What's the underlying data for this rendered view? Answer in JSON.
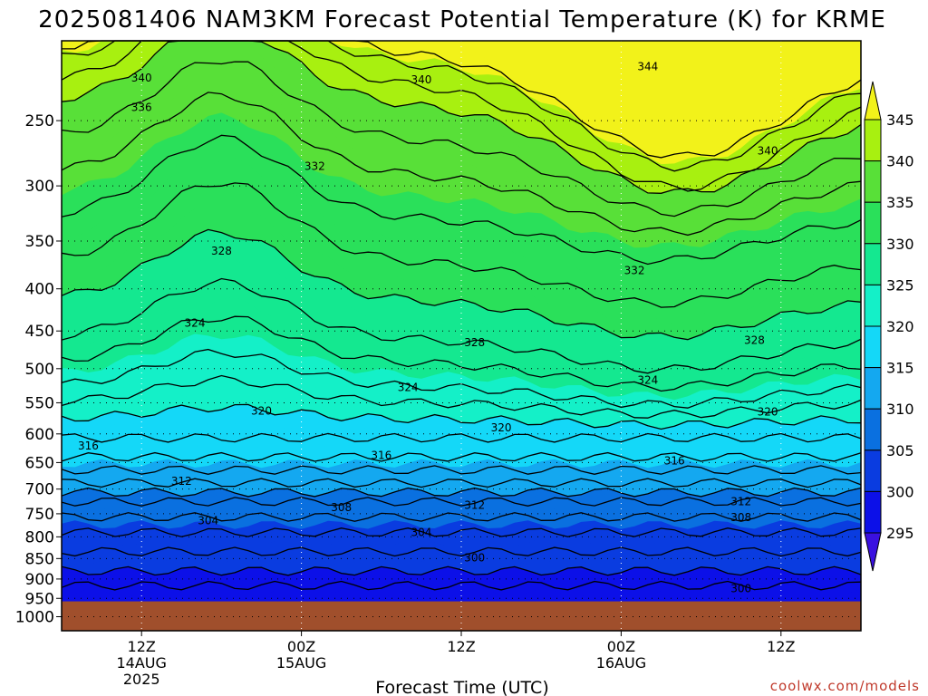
{
  "chart_data": {
    "type": "heatmap",
    "title": "2025081406 NAM3KM Forecast Potential Temperature (K) for KRME",
    "xlabel": "Forecast Time (UTC)",
    "ylabel": "",
    "credit": "coolwx.com/models",
    "y_ticks": [
      "250",
      "300",
      "350",
      "400",
      "450",
      "500",
      "550",
      "600",
      "650",
      "700",
      "750",
      "800",
      "850",
      "900",
      "950",
      "1000"
    ],
    "y_tick_values": [
      250,
      300,
      350,
      400,
      450,
      500,
      550,
      600,
      650,
      700,
      750,
      800,
      850,
      900,
      950,
      1000
    ],
    "y_range_hPa": [
      200,
      1040
    ],
    "y_scale": "log",
    "x_range_hours_from_06Z_14AUG": [
      0,
      60
    ],
    "x_ticks": [
      {
        "label": "12Z",
        "sub1": "14AUG",
        "sub2": "2025",
        "hour": 6
      },
      {
        "label": "00Z",
        "sub1": "15AUG",
        "sub2": "",
        "hour": 18
      },
      {
        "label": "12Z",
        "sub1": "",
        "sub2": "",
        "hour": 30
      },
      {
        "label": "00Z",
        "sub1": "16AUG",
        "sub2": "",
        "hour": 42
      },
      {
        "label": "12Z",
        "sub1": "",
        "sub2": "",
        "hour": 54
      }
    ],
    "colorbar": {
      "levels": [
        "295",
        "300",
        "305",
        "310",
        "315",
        "320",
        "325",
        "330",
        "335",
        "340",
        "345"
      ],
      "colors": [
        "#3a10e0",
        "#0c10e8",
        "#0a3ce0",
        "#0a70e0",
        "#14a8f0",
        "#14d8f8",
        "#14f0c8",
        "#14e890",
        "#2ae05a",
        "#58e038",
        "#a8f010",
        "#f2f21a"
      ]
    },
    "ground_color": "#a04f2c",
    "contour_labels": [
      {
        "text": "340",
        "hour": 6,
        "p": 222
      },
      {
        "text": "340",
        "hour": 27,
        "p": 223
      },
      {
        "text": "344",
        "hour": 44,
        "p": 215
      },
      {
        "text": "336",
        "hour": 6,
        "p": 241
      },
      {
        "text": "332",
        "hour": 19,
        "p": 284
      },
      {
        "text": "340",
        "hour": 53,
        "p": 272
      },
      {
        "text": "328",
        "hour": 12,
        "p": 360
      },
      {
        "text": "332",
        "hour": 43,
        "p": 380
      },
      {
        "text": "324",
        "hour": 10,
        "p": 440
      },
      {
        "text": "328",
        "hour": 31,
        "p": 465
      },
      {
        "text": "328",
        "hour": 52,
        "p": 462
      },
      {
        "text": "324",
        "hour": 26,
        "p": 527
      },
      {
        "text": "324",
        "hour": 44,
        "p": 516
      },
      {
        "text": "320",
        "hour": 15,
        "p": 563
      },
      {
        "text": "320",
        "hour": 33,
        "p": 590
      },
      {
        "text": "320",
        "hour": 53,
        "p": 564
      },
      {
        "text": "316",
        "hour": 2,
        "p": 620
      },
      {
        "text": "316",
        "hour": 24,
        "p": 637
      },
      {
        "text": "316",
        "hour": 46,
        "p": 647
      },
      {
        "text": "312",
        "hour": 9,
        "p": 685
      },
      {
        "text": "312",
        "hour": 31,
        "p": 732
      },
      {
        "text": "312",
        "hour": 51,
        "p": 725
      },
      {
        "text": "308",
        "hour": 21,
        "p": 737
      },
      {
        "text": "308",
        "hour": 51,
        "p": 758
      },
      {
        "text": "304",
        "hour": 11,
        "p": 765
      },
      {
        "text": "304",
        "hour": 27,
        "p": 790
      },
      {
        "text": "300",
        "hour": 31,
        "p": 848
      },
      {
        "text": "300",
        "hour": 51,
        "p": 925
      }
    ]
  }
}
